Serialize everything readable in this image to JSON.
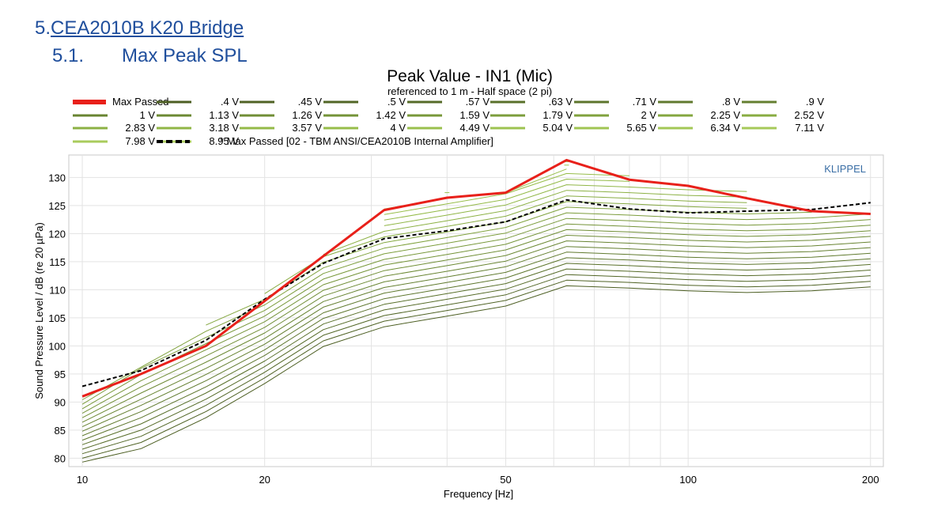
{
  "heading": {
    "number": "5.",
    "title": "CEA2010B K20 Bridge"
  },
  "subheading": {
    "number": "5.1.",
    "title": "Max Peak SPL"
  },
  "chart_data": {
    "type": "line",
    "title": "Peak Value - IN1 (Mic)",
    "subtitle": "referenced to 1 m - Half space (2 pi)",
    "xlabel": "Frequency [Hz]",
    "ylabel": "Sound Pressure Level / dB (re 20 µPa)",
    "xscale": "log",
    "xlim": [
      9.5,
      210
    ],
    "ylim": [
      78.5,
      134
    ],
    "xticks": [
      10,
      20,
      50,
      100,
      200
    ],
    "xtick_labels": [
      "10",
      "20",
      "50",
      "100",
      "200"
    ],
    "yticks": [
      80,
      85,
      90,
      95,
      100,
      105,
      110,
      115,
      120,
      125,
      130
    ],
    "ytick_labels": [
      "80",
      "85",
      "90",
      "95",
      "100",
      "105",
      "110",
      "115",
      "120",
      "125",
      "130"
    ],
    "watermark": "KLIPPEL",
    "grid": true,
    "x": [
      10,
      12.5,
      16,
      20,
      25,
      31.5,
      40,
      50,
      63,
      80,
      100,
      125,
      160,
      200
    ],
    "series": [
      {
        "name": "Max Passed",
        "color": "#e8201a",
        "style": "solid-thick",
        "values": [
          91.0,
          95.0,
          100.0,
          108.0,
          116.0,
          124.2,
          126.4,
          127.3,
          133.1,
          129.6,
          128.5,
          126.3,
          124.0,
          123.5
        ]
      },
      {
        "name": ".4 V",
        "color": "#4c5e22",
        "style": "solid",
        "values": [
          79.3,
          81.7,
          87.2,
          93.3,
          99.9,
          103.4,
          105.3,
          107.1,
          110.7,
          110.3,
          109.8,
          109.5,
          109.8,
          110.5
        ]
      },
      {
        "name": ".45 V",
        "color": "#4f6224",
        "style": "solid",
        "values": [
          80.0,
          82.8,
          88.3,
          94.3,
          100.9,
          104.4,
          106.3,
          108.1,
          111.7,
          111.3,
          110.8,
          110.5,
          110.8,
          111.5
        ]
      },
      {
        "name": ".5 V",
        "color": "#526626",
        "style": "solid",
        "values": [
          80.8,
          83.9,
          89.4,
          95.3,
          101.9,
          105.4,
          107.3,
          109.1,
          112.7,
          112.3,
          111.8,
          111.5,
          111.8,
          112.5
        ]
      },
      {
        "name": ".57 V",
        "color": "#566b28",
        "style": "solid",
        "values": [
          81.6,
          85.0,
          90.5,
          96.3,
          102.9,
          106.4,
          108.3,
          110.1,
          113.7,
          113.3,
          112.8,
          112.5,
          112.8,
          113.5
        ]
      },
      {
        "name": ".63 V",
        "color": "#59702a",
        "style": "solid",
        "values": [
          82.4,
          86.1,
          91.6,
          97.3,
          103.9,
          107.4,
          109.3,
          111.1,
          114.7,
          114.3,
          113.8,
          113.5,
          113.8,
          114.5
        ]
      },
      {
        "name": ".71 V",
        "color": "#5d752c",
        "style": "solid",
        "values": [
          83.2,
          87.2,
          92.7,
          98.3,
          104.9,
          108.4,
          110.3,
          112.1,
          115.7,
          115.3,
          114.8,
          114.5,
          114.8,
          115.5
        ]
      },
      {
        "name": ".8 V",
        "color": "#607a2e",
        "style": "solid",
        "values": [
          84.0,
          88.3,
          93.8,
          99.3,
          105.9,
          109.4,
          111.3,
          113.1,
          116.7,
          116.3,
          115.8,
          115.5,
          115.8,
          116.5
        ]
      },
      {
        "name": ".9 V",
        "color": "#647f30",
        "style": "solid",
        "values": [
          84.8,
          89.4,
          94.9,
          100.3,
          106.9,
          110.4,
          112.3,
          114.1,
          117.7,
          117.3,
          116.8,
          116.5,
          116.8,
          117.5
        ]
      },
      {
        "name": "1 V",
        "color": "#688432",
        "style": "solid",
        "values": [
          85.6,
          90.5,
          96.0,
          101.3,
          107.9,
          111.4,
          113.3,
          115.1,
          118.7,
          118.3,
          117.8,
          117.5,
          117.8,
          118.5
        ]
      },
      {
        "name": "1.13 V",
        "color": "#6c8934",
        "style": "solid",
        "values": [
          86.4,
          91.6,
          97.1,
          102.3,
          108.9,
          112.4,
          114.3,
          116.1,
          119.7,
          119.3,
          118.8,
          118.5,
          118.8,
          119.5
        ]
      },
      {
        "name": "1.26 V",
        "color": "#708e36",
        "style": "solid",
        "values": [
          87.2,
          92.7,
          98.2,
          103.3,
          109.9,
          113.4,
          115.3,
          117.1,
          120.7,
          120.3,
          119.8,
          119.5,
          119.8,
          120.5
        ]
      },
      {
        "name": "1.42 V",
        "color": "#749338",
        "style": "solid",
        "values": [
          88.0,
          93.8,
          99.3,
          104.3,
          110.9,
          114.4,
          116.3,
          118.1,
          121.7,
          121.3,
          120.8,
          120.5,
          120.8,
          121.5
        ]
      },
      {
        "name": "1.59 V",
        "color": "#78983a",
        "style": "solid",
        "values": [
          88.8,
          94.9,
          100.4,
          105.3,
          111.9,
          115.4,
          117.3,
          119.1,
          122.7,
          122.3,
          121.8,
          121.5,
          121.8,
          122.5
        ]
      },
      {
        "name": "1.79 V",
        "color": "#7c9d3c",
        "style": "solid",
        "values": [
          89.6,
          96.0,
          101.5,
          106.3,
          112.9,
          116.4,
          118.3,
          120.1,
          123.7,
          123.3,
          122.8,
          122.5,
          122.8,
          123.5
        ]
      },
      {
        "name": "2 V",
        "color": "#80a23e",
        "style": "solid",
        "values": [
          90.4,
          96.2,
          102.6,
          107.3,
          113.9,
          117.4,
          119.3,
          121.1,
          124.7,
          124.3,
          123.8,
          123.5,
          123.8,
          null
        ]
      },
      {
        "name": "2.25 V",
        "color": "#84a740",
        "style": "solid",
        "values": [
          null,
          null,
          103.7,
          108.3,
          114.9,
          118.4,
          120.3,
          122.1,
          125.7,
          125.3,
          124.8,
          124.5,
          null,
          null
        ]
      },
      {
        "name": "2.52 V",
        "color": "#88ac42",
        "style": "solid",
        "values": [
          null,
          null,
          null,
          109.3,
          115.9,
          119.4,
          121.3,
          123.1,
          126.7,
          126.3,
          125.8,
          125.5,
          null,
          null
        ]
      },
      {
        "name": "2.83 V",
        "color": "#8cb144",
        "style": "solid",
        "values": [
          null,
          null,
          null,
          null,
          116.3,
          120.4,
          122.3,
          124.1,
          127.7,
          127.3,
          126.8,
          126.5,
          null,
          null
        ]
      },
      {
        "name": "3.18 V",
        "color": "#90b646",
        "style": "solid",
        "values": [
          null,
          null,
          null,
          null,
          null,
          121.4,
          123.3,
          125.1,
          128.7,
          128.3,
          127.8,
          127.5,
          null,
          null
        ]
      },
      {
        "name": "3.57 V",
        "color": "#94ba48",
        "style": "solid",
        "values": [
          null,
          null,
          null,
          null,
          null,
          122.4,
          124.3,
          126.1,
          129.7,
          129.3,
          null,
          null,
          null,
          null
        ]
      },
      {
        "name": "4 V",
        "color": "#97bd4a",
        "style": "solid",
        "values": [
          null,
          null,
          null,
          null,
          null,
          123.4,
          125.3,
          127.1,
          130.7,
          130.3,
          null,
          null,
          null,
          null
        ]
      },
      {
        "name": "4.49 V",
        "color": "#9ac04d",
        "style": "solid",
        "values": [
          null,
          null,
          null,
          null,
          null,
          124.4,
          126.3,
          127.3,
          131.5,
          null,
          null,
          null,
          null,
          null
        ]
      },
      {
        "name": "5.04 V",
        "color": "#9dc350",
        "style": "solid",
        "values": [
          null,
          null,
          null,
          null,
          null,
          null,
          127.3,
          null,
          132.2,
          null,
          null,
          null,
          null,
          null
        ]
      },
      {
        "name": "5.65 V",
        "color": "#a0c553",
        "style": "solid",
        "values": [
          null,
          null,
          null,
          null,
          null,
          null,
          null,
          null,
          132.8,
          null,
          null,
          null,
          null,
          null
        ]
      },
      {
        "name": "6.34 V",
        "color": "#a3c756",
        "style": "solid",
        "values": [
          null,
          null,
          null,
          null,
          null,
          null,
          null,
          null,
          null,
          null,
          null,
          null,
          null,
          null
        ]
      },
      {
        "name": "7.11 V",
        "color": "#a6c959",
        "style": "solid",
        "values": [
          null,
          null,
          null,
          null,
          null,
          null,
          null,
          null,
          null,
          null,
          null,
          null,
          null,
          null
        ]
      },
      {
        "name": "7.98 V",
        "color": "#a9cb5c",
        "style": "solid",
        "values": [
          null,
          null,
          null,
          null,
          null,
          null,
          null,
          null,
          null,
          null,
          null,
          null,
          null,
          null
        ]
      },
      {
        "name": "8.95 V",
        "color": "#acce60",
        "style": "solid",
        "values": [
          null,
          null,
          null,
          null,
          null,
          null,
          null,
          null,
          null,
          null,
          null,
          null,
          null,
          null
        ]
      },
      {
        "name": "* Max Passed [02 - TBM ANSI/CEA2010B Internal Amplifier]",
        "color": "#000000",
        "style": "dashed",
        "values": [
          92.8,
          95.6,
          101.0,
          108.3,
          114.7,
          119.1,
          120.5,
          122.1,
          126.0,
          124.4,
          123.7,
          124.0,
          124.3,
          125.5
        ]
      }
    ]
  }
}
